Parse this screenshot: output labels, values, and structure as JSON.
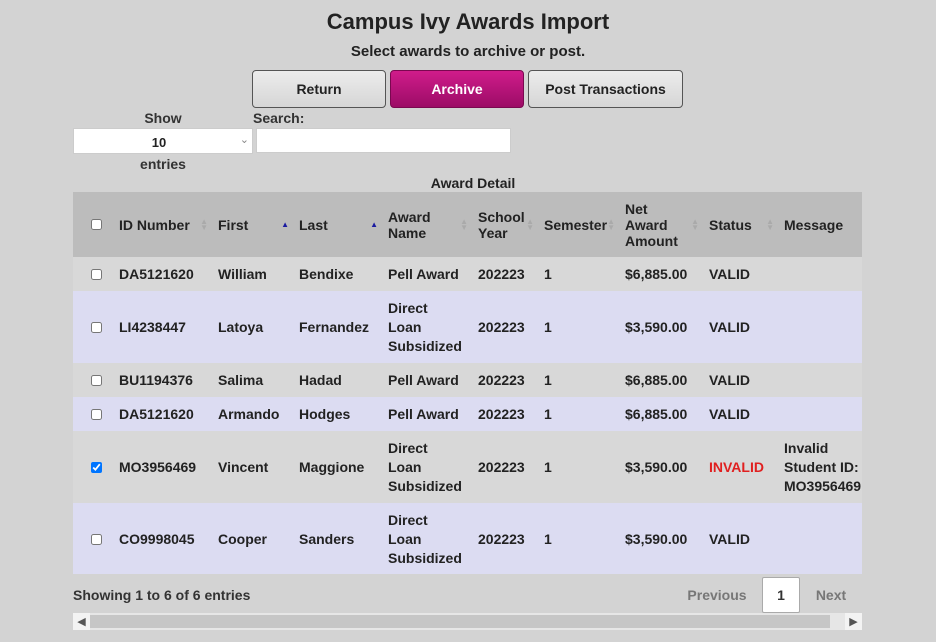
{
  "header": {
    "title": "Campus Ivy Awards Import",
    "subtitle": "Select awards to archive or post."
  },
  "toolbar": {
    "return_label": "Return",
    "archive_label": "Archive",
    "post_label": "Post Transactions"
  },
  "length": {
    "show_label": "Show",
    "value": "10",
    "entries_label": "entries"
  },
  "search": {
    "label": "Search:",
    "value": ""
  },
  "table": {
    "group_label": "Award Detail",
    "headers": {
      "id": "ID Number",
      "first": "First",
      "last": "Last",
      "award": "Award Name",
      "year": "School Year",
      "semester": "Semester",
      "amount": "Net Award Amount",
      "status": "Status",
      "message": "Message"
    },
    "rows": [
      {
        "checked": false,
        "id": "DA5121620",
        "first": "William",
        "last": "Bendixe",
        "award": "Pell Award",
        "year": "202223",
        "semester": "1",
        "amount": "$6,885.00",
        "status": "VALID",
        "message": ""
      },
      {
        "checked": false,
        "id": "LI4238447",
        "first": "Latoya",
        "last": "Fernandez",
        "award": "Direct Loan Subsidized",
        "year": "202223",
        "semester": "1",
        "amount": "$3,590.00",
        "status": "VALID",
        "message": ""
      },
      {
        "checked": false,
        "id": "BU1194376",
        "first": "Salima",
        "last": "Hadad",
        "award": "Pell Award",
        "year": "202223",
        "semester": "1",
        "amount": "$6,885.00",
        "status": "VALID",
        "message": ""
      },
      {
        "checked": false,
        "id": "DA5121620",
        "first": "Armando",
        "last": "Hodges",
        "award": "Pell Award",
        "year": "202223",
        "semester": "1",
        "amount": "$6,885.00",
        "status": "VALID",
        "message": ""
      },
      {
        "checked": true,
        "id": "MO3956469",
        "first": "Vincent",
        "last": "Maggione",
        "award": "Direct Loan Subsidized",
        "year": "202223",
        "semester": "1",
        "amount": "$3,590.00",
        "status": "INVALID",
        "message": "Invalid Student ID: MO3956469"
      },
      {
        "checked": false,
        "id": "CO9998045",
        "first": "Cooper",
        "last": "Sanders",
        "award": "Direct Loan Subsidized",
        "year": "202223",
        "semester": "1",
        "amount": "$3,590.00",
        "status": "VALID",
        "message": ""
      }
    ]
  },
  "footer": {
    "info": "Showing 1 to 6 of 6 entries",
    "previous": "Previous",
    "page": "1",
    "next": "Next"
  },
  "colors": {
    "accent": "#b0127a",
    "invalid": "#e02020",
    "row_alt": "#dcdcf2"
  }
}
